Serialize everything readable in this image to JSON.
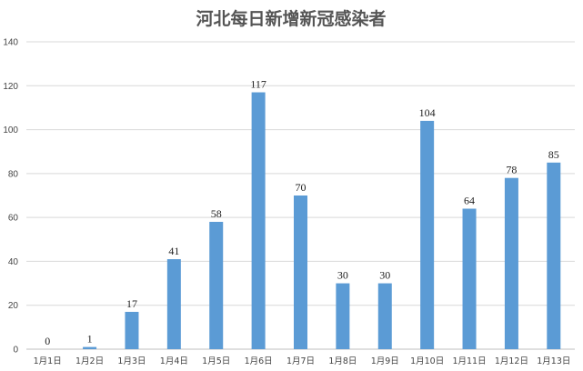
{
  "chart_data": {
    "type": "bar",
    "title": "河北每日新增新冠感染者",
    "xlabel": "",
    "ylabel": "",
    "categories": [
      "1月1日",
      "1月2日",
      "1月3日",
      "1月4日",
      "1月5日",
      "1月6日",
      "1月7日",
      "1月8日",
      "1月9日",
      "1月10日",
      "1月11日",
      "1月12日",
      "1月13日"
    ],
    "values": [
      0,
      1,
      17,
      41,
      58,
      117,
      70,
      30,
      30,
      104,
      64,
      78,
      85
    ],
    "ylim": [
      0,
      140
    ],
    "yticks": [
      0,
      20,
      40,
      60,
      80,
      100,
      120,
      140
    ],
    "grid": true,
    "legend": "none",
    "bar_color": "#5b9bd5",
    "data_labels": true
  }
}
